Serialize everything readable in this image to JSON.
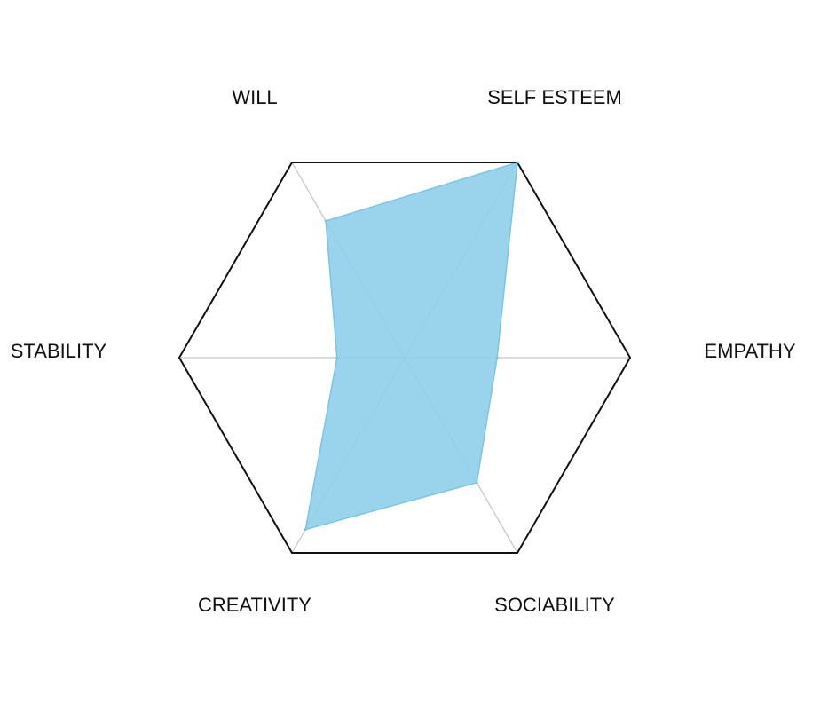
{
  "chart_data": {
    "type": "radar",
    "axes": [
      "SELF ESTEEM",
      "EMPATHY",
      "SOCIABILITY",
      "CREATIVITY",
      "STABILITY",
      "WILL"
    ],
    "scale": {
      "min": 0,
      "max": 1
    },
    "series": [
      {
        "values": [
          1.0,
          0.41,
          0.64,
          0.88,
          0.3,
          0.7
        ],
        "color": "#8ecfea"
      }
    ],
    "colors": {
      "frame": "#111111",
      "spokes": "#c8c8c8",
      "fill": "#8ecfea",
      "fill_stroke": "#7cc4e4"
    }
  }
}
